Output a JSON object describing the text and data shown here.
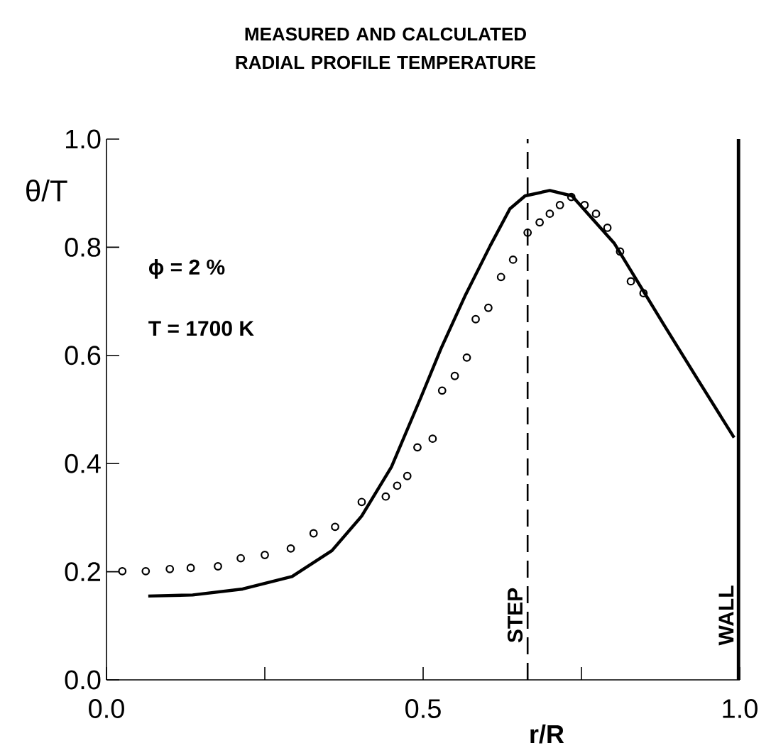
{
  "chart_data": {
    "type": "line",
    "title": "MEASURED AND CALCULATED RADIAL PROFILE TEMPERATURE",
    "xlabel": "r/R",
    "ylabel": "θ/T",
    "annotations": [
      "ϕ = 2 %",
      "T = 1700 K"
    ],
    "xlim": [
      0,
      1
    ],
    "ylim": [
      0,
      1
    ],
    "xticks": [
      {
        "value": 0,
        "label": "0.0"
      },
      {
        "value": 0.25,
        "label": null
      },
      {
        "value": 0.5,
        "label": "0.5"
      },
      {
        "value": 0.75,
        "label": null
      },
      {
        "value": 1,
        "label": "1.0"
      }
    ],
    "yticks": [
      {
        "value": 0,
        "label": "0.0"
      },
      {
        "value": 0.2,
        "label": "0.2"
      },
      {
        "value": 0.4,
        "label": "0.4"
      },
      {
        "value": 0.6,
        "label": "0.6"
      },
      {
        "value": 0.8,
        "label": "0.8"
      },
      {
        "value": 1,
        "label": "1.0"
      }
    ],
    "series": [
      {
        "type": "scatter",
        "marker": "circle",
        "color": "#000000",
        "x": [
          0.025,
          0.062,
          0.1,
          0.133,
          0.176,
          0.212,
          0.25,
          0.291,
          0.327,
          0.361,
          0.403,
          0.441,
          0.459,
          0.475,
          0.491,
          0.515,
          0.53,
          0.55,
          0.569,
          0.583,
          0.603,
          0.623,
          0.642,
          0.665,
          0.684,
          0.7,
          0.716,
          0.734,
          0.755,
          0.773,
          0.791,
          0.811,
          0.828,
          0.848
        ],
        "values": [
          0.201,
          0.201,
          0.205,
          0.207,
          0.21,
          0.225,
          0.231,
          0.243,
          0.271,
          0.283,
          0.329,
          0.339,
          0.359,
          0.377,
          0.43,
          0.446,
          0.535,
          0.562,
          0.596,
          0.667,
          0.688,
          0.745,
          0.777,
          0.827,
          0.846,
          0.862,
          0.878,
          0.893,
          0.878,
          0.862,
          0.836,
          0.792,
          0.737,
          0.715
        ]
      },
      {
        "line_style": "solid",
        "color": "#000000",
        "x": [
          0.066,
          0.136,
          0.215,
          0.293,
          0.356,
          0.403,
          0.45,
          0.496,
          0.528,
          0.567,
          0.606,
          0.637,
          0.661,
          0.7,
          0.735,
          0.802,
          0.88,
          0.935,
          0.991
        ],
        "values": [
          0.155,
          0.157,
          0.168,
          0.191,
          0.239,
          0.303,
          0.394,
          0.521,
          0.612,
          0.712,
          0.803,
          0.871,
          0.895,
          0.905,
          0.895,
          0.807,
          0.657,
          0.553,
          0.448
        ]
      }
    ],
    "ref_lines": [
      {
        "axis": "x",
        "value": 0.665,
        "label": "STEP",
        "color": "#000000",
        "line_style": "dashed"
      },
      {
        "axis": "x",
        "value": 0.998,
        "label": "WALL",
        "color": "#000000",
        "line_style": "solid"
      }
    ]
  }
}
